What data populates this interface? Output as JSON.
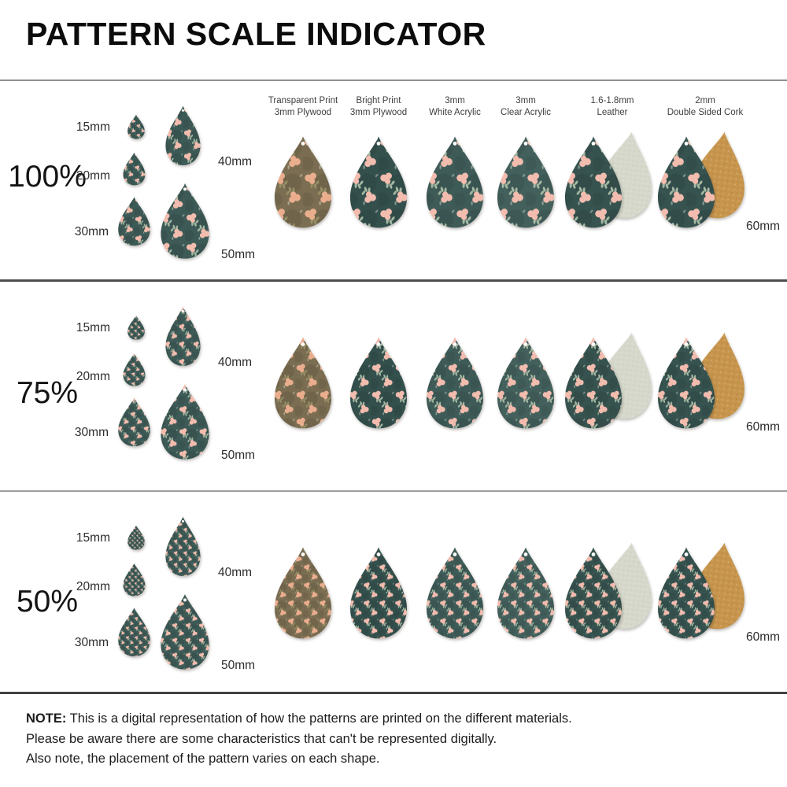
{
  "title": "PATTERN SCALE INDICATOR",
  "rows": [
    {
      "scale_label": "100%",
      "pattern_scale": 1
    },
    {
      "scale_label": "75%",
      "pattern_scale": 0.75
    },
    {
      "scale_label": "50%",
      "pattern_scale": 0.5
    }
  ],
  "cluster_sizes": [
    "15mm",
    "20mm",
    "30mm",
    "40mm",
    "50mm"
  ],
  "large_size_label": "60mm",
  "columns": [
    {
      "key": "transparent-plywood",
      "header": [
        "Transparent Print",
        "3mm Plywood"
      ],
      "base": "wood_base",
      "flower": "flower_peach",
      "leaf": "leaf_olive",
      "backing": null
    },
    {
      "key": "bright-plywood",
      "header": [
        "Bright Print",
        "3mm Plywood"
      ],
      "base": "bright_print_base",
      "flower": "flower_pink",
      "leaf": "leaf_sage",
      "backing": null
    },
    {
      "key": "white-acrylic",
      "header": [
        "3mm",
        "White Acrylic"
      ],
      "base": "white_acrylic_base",
      "flower": "flower_pink",
      "leaf": "leaf_sage",
      "backing": null
    },
    {
      "key": "clear-acrylic",
      "header": [
        "3mm",
        "Clear Acrylic"
      ],
      "base": "clear_acrylic_base",
      "flower": "flower_pink",
      "leaf": "leaf_sage",
      "backing": null
    },
    {
      "key": "leather",
      "header": [
        "1.6-1.8mm",
        "Leather"
      ],
      "base": "leather_front_base",
      "flower": "flower_pink",
      "leaf": "leaf_sage",
      "backing": "leather"
    },
    {
      "key": "cork",
      "header": [
        "2mm",
        "Double Sided Cork"
      ],
      "base": "cork_front_base",
      "flower": "flower_pink",
      "leaf": "leaf_sage",
      "backing": "cork"
    }
  ],
  "note": {
    "label": "NOTE:",
    "lines": [
      "This is a digital representation of how the patterns are printed on the different materials.",
      "Please be aware there are some characteristics that can't be represented digitally.",
      "Also note, the placement of the pattern varies on each shape."
    ]
  },
  "colors": {
    "teal_base": "#3d5a56",
    "wood_base": "#7a6d51",
    "bright_print_base": "#34504d",
    "white_acrylic_base": "#3e5b58",
    "clear_acrylic_base": "#43605c",
    "leather_front_base": "#37534f",
    "cork_front_base": "#365350",
    "flower_pink": "#f2bcae",
    "leaf_sage": "#a3b7a2",
    "flower_peach": "#eaae8f",
    "leaf_olive": "#968f65",
    "leather_back": "#d6d8cc",
    "leather_speckle": "#c0c4b4",
    "cork_back": "#c7954d",
    "cork_speckle_dark": "#a87a38",
    "cork_speckle_light": "#e6c489"
  }
}
